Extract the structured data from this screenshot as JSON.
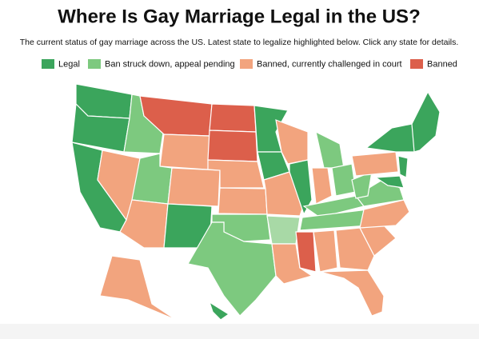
{
  "header": {
    "title": "Where Is Gay Marriage Legal in the US?",
    "subtitle": "The current status of gay marriage across the US. Latest state to legalize highlighted below. Click any state for details."
  },
  "legend": [
    {
      "label": "Legal",
      "color": "#3ba55c"
    },
    {
      "label": "Ban struck down, appeal pending",
      "color": "#7dc97f"
    },
    {
      "label": "Banned, currently challenged in court",
      "color": "#f2a47e"
    },
    {
      "label": "Banned",
      "color": "#dc5f4b"
    }
  ]
}
